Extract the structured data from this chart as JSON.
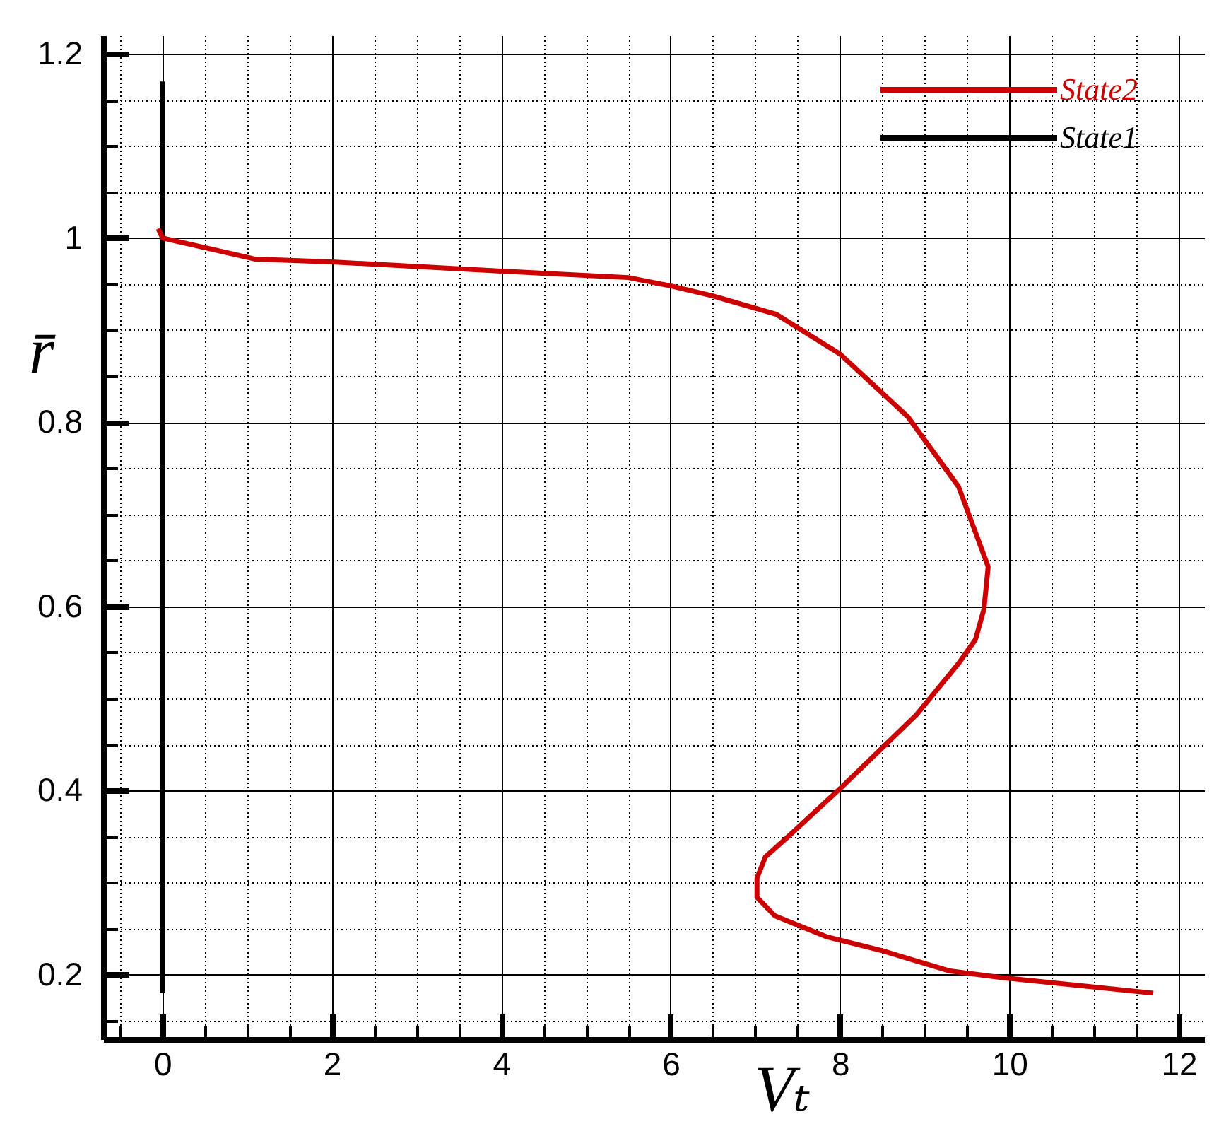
{
  "chart_data": {
    "type": "line",
    "xlabel": "Vₜ",
    "ylabel": "r̄",
    "xlim": [
      -0.7,
      12.3
    ],
    "ylim": [
      0.13,
      1.22
    ],
    "xticks": [
      {
        "value": -0.5,
        "label": null
      },
      0,
      {
        "value": 0.5,
        "label": null
      },
      {
        "value": 1,
        "label": null
      },
      {
        "value": 1.5,
        "label": null
      },
      2,
      {
        "value": 2.5,
        "label": null
      },
      {
        "value": 3,
        "label": null
      },
      {
        "value": 3.5,
        "label": null
      },
      4,
      {
        "value": 4.5,
        "label": null
      },
      {
        "value": 5,
        "label": null
      },
      {
        "value": 5.5,
        "label": null
      },
      6,
      {
        "value": 6.5,
        "label": null
      },
      {
        "value": 7,
        "label": null
      },
      {
        "value": 7.5,
        "label": null
      },
      8,
      {
        "value": 8.5,
        "label": null
      },
      {
        "value": 9,
        "label": null
      },
      {
        "value": 9.5,
        "label": null
      },
      10,
      {
        "value": 10.5,
        "label": null
      },
      {
        "value": 11,
        "label": null
      },
      {
        "value": 11.5,
        "label": null
      },
      12
    ],
    "yticks": [
      {
        "value": 0.15,
        "label": null
      },
      0.2,
      {
        "value": 0.25,
        "label": null
      },
      {
        "value": 0.3,
        "label": null
      },
      {
        "value": 0.35,
        "label": null
      },
      0.4,
      {
        "value": 0.45,
        "label": null
      },
      {
        "value": 0.5,
        "label": null
      },
      {
        "value": 0.55,
        "label": null
      },
      0.6,
      {
        "value": 0.65,
        "label": null
      },
      {
        "value": 0.7,
        "label": null
      },
      {
        "value": 0.75,
        "label": null
      },
      0.8,
      {
        "value": 0.85,
        "label": null
      },
      {
        "value": 0.9,
        "label": null
      },
      {
        "value": 0.95,
        "label": null
      },
      1,
      {
        "value": 1.05,
        "label": null
      },
      {
        "value": 1.1,
        "label": null
      },
      {
        "value": 1.15,
        "label": null
      },
      1.2
    ],
    "grid": true,
    "legend": "top right",
    "line_style": "solid",
    "series": [
      {
        "name": "State2",
        "color": "#cc0000",
        "x": [
          -0.05,
          0,
          1.1,
          2,
          4,
          5.5,
          6,
          6.5,
          7.25,
          8,
          8.8,
          9.4,
          9.75,
          9.7,
          9.6,
          9.4,
          8.9,
          8,
          7.4,
          7.12,
          7.02,
          7.02,
          7.23,
          7.85,
          8.5,
          9.3,
          9.9,
          11.7
        ],
        "values": [
          1.01,
          1.0,
          0.977,
          0.974,
          0.964,
          0.957,
          0.948,
          0.937,
          0.917,
          0.874,
          0.806,
          0.73,
          0.643,
          0.597,
          0.564,
          0.538,
          0.482,
          0.402,
          0.351,
          0.328,
          0.305,
          0.284,
          0.264,
          0.241,
          0.226,
          0.204,
          0.197,
          0.18
        ]
      },
      {
        "name": "State1",
        "color": "#000000",
        "x": [
          0,
          0
        ],
        "values": [
          0.18,
          1.17
        ]
      }
    ]
  }
}
